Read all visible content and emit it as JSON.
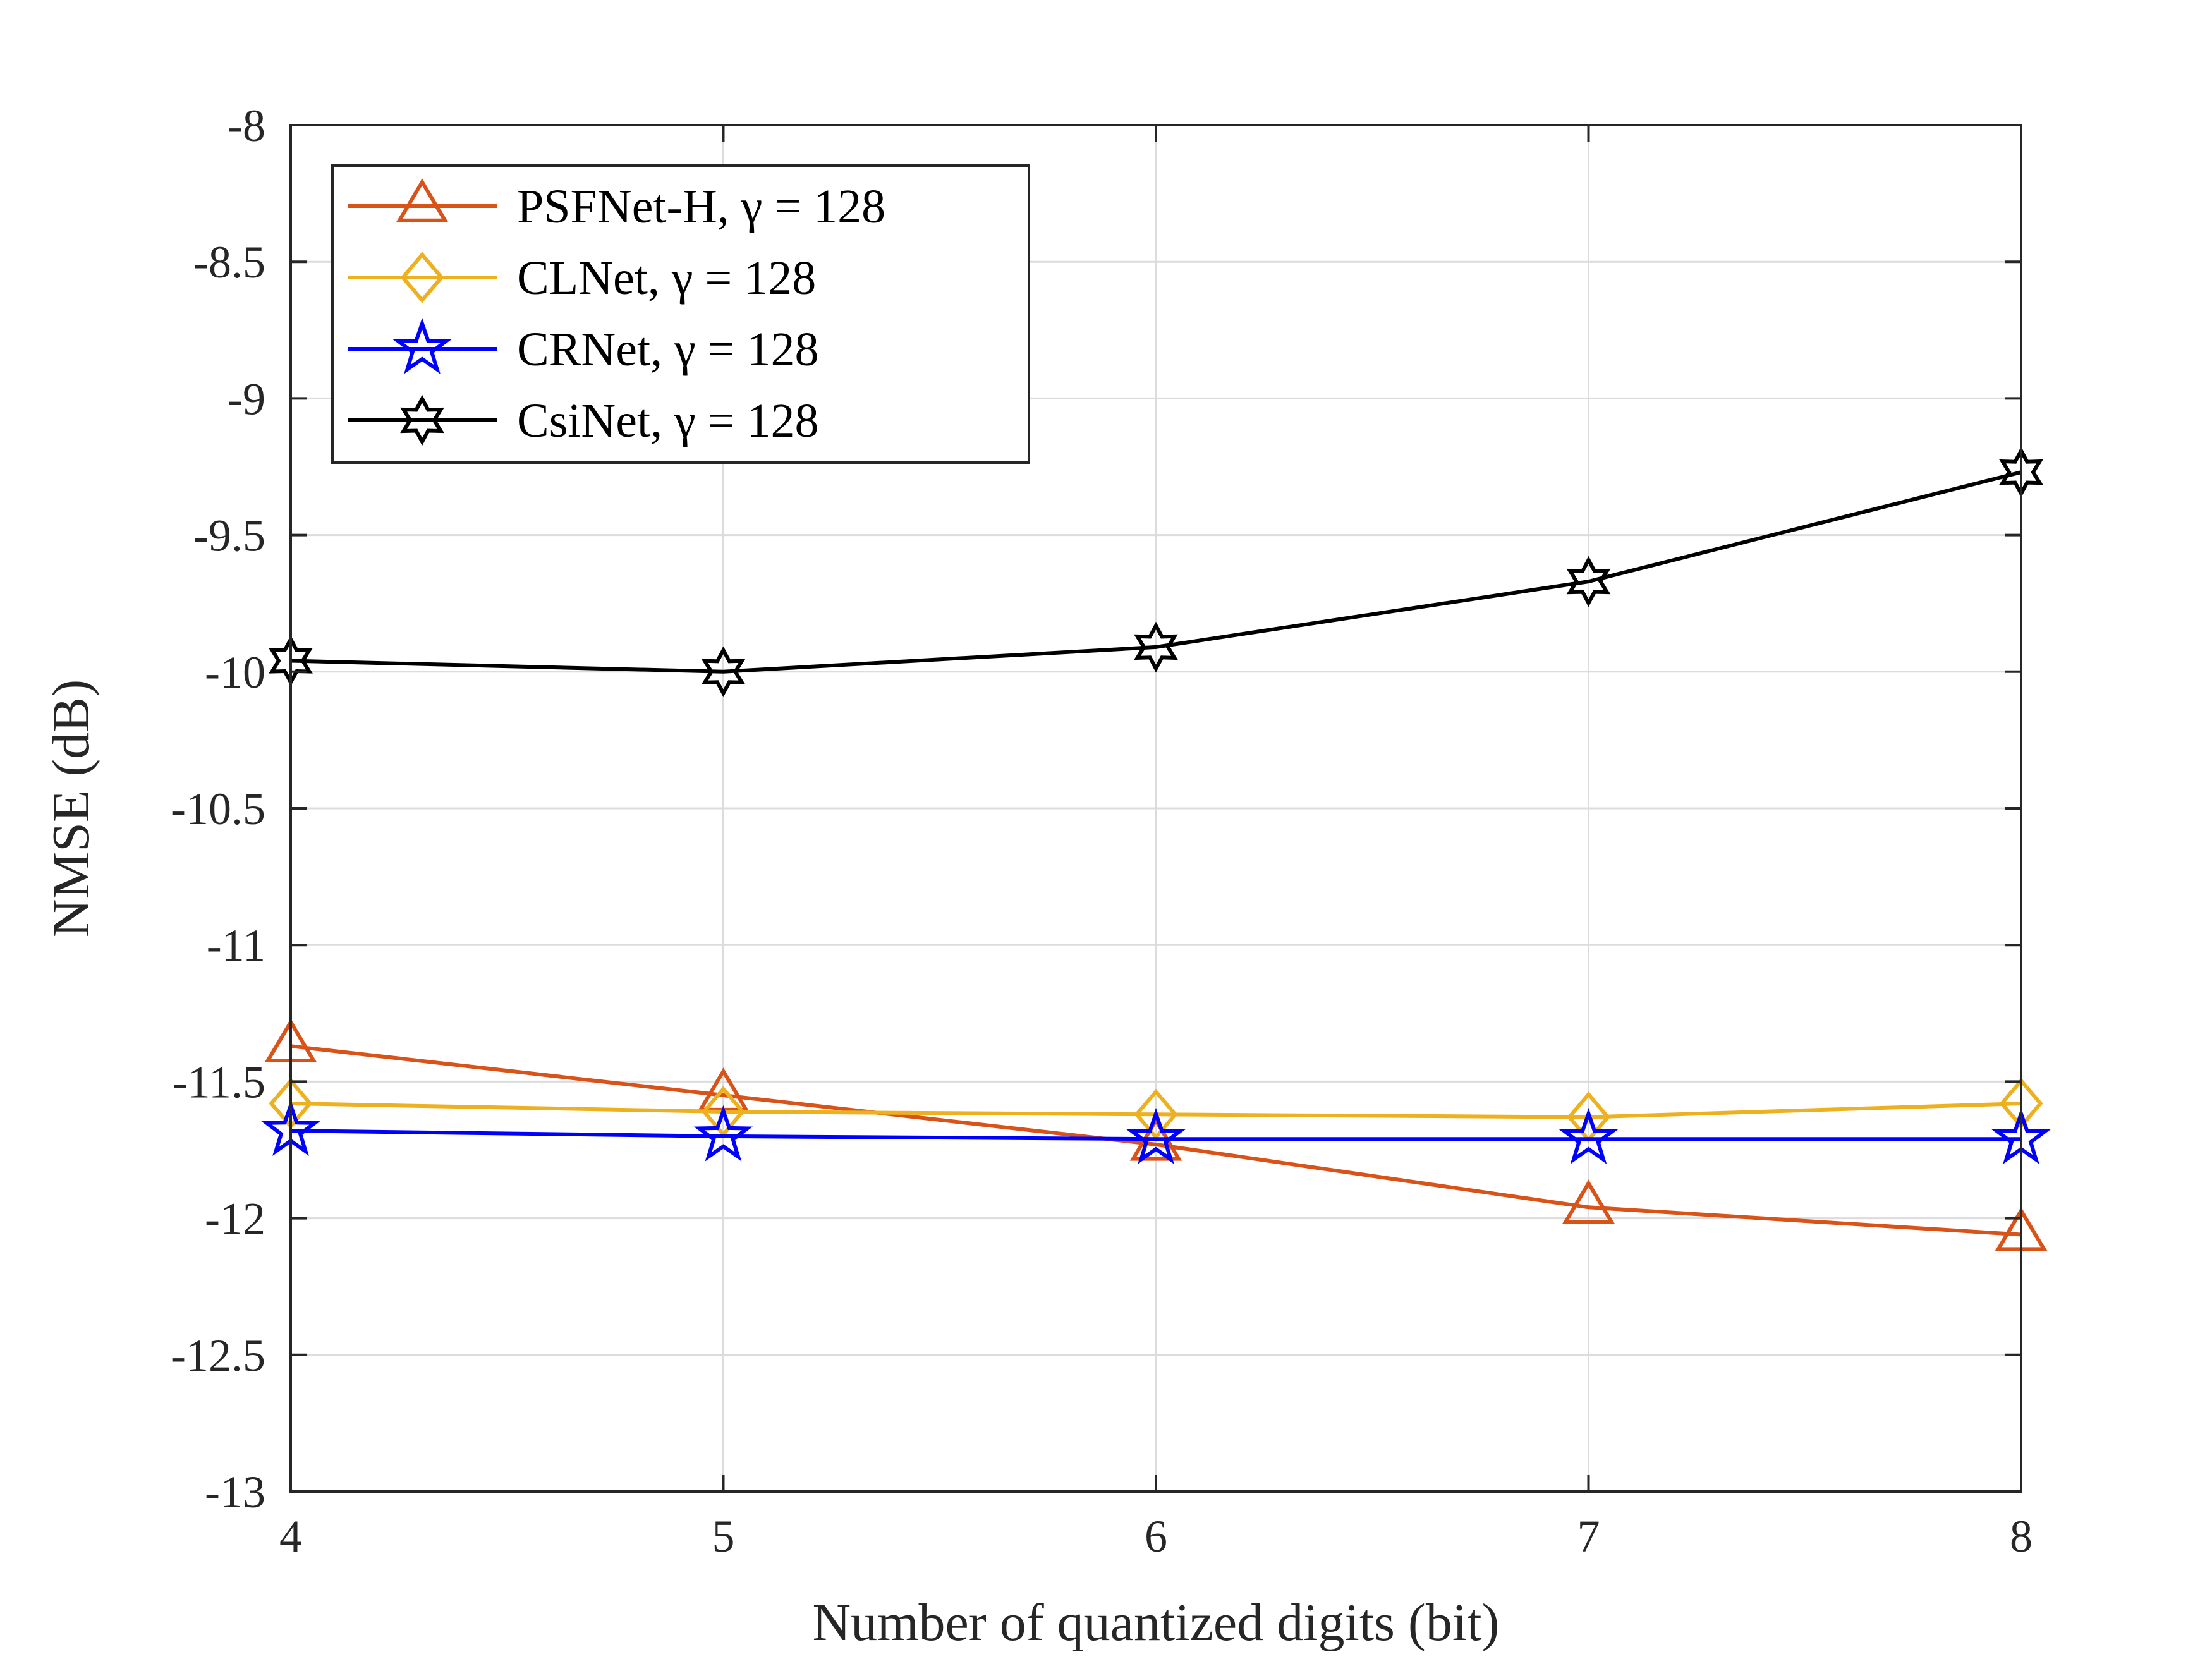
{
  "chart_data": {
    "type": "line",
    "xlabel": "Number of quantized digits (bit)",
    "ylabel": "NMSE (dB)",
    "x": [
      4,
      5,
      6,
      7,
      8
    ],
    "xlim": [
      4,
      8
    ],
    "ylim": [
      -13,
      -8
    ],
    "xticks": [
      "4",
      "5",
      "6",
      "7",
      "8"
    ],
    "yticks": [
      "-8",
      "-8.5",
      "-9",
      "-9.5",
      "-10",
      "-10.5",
      "-11",
      "-11.5",
      "-12",
      "-12.5",
      "-13"
    ],
    "grid": true,
    "legend_position": "top-left",
    "series": [
      {
        "name": "PSFNet-H, γ = 128",
        "color": "#D95319",
        "marker": "triangle",
        "values": [
          -11.37,
          -11.55,
          -11.73,
          -11.96,
          -12.06
        ]
      },
      {
        "name": "CLNet, γ = 128",
        "color": "#EDB120",
        "marker": "diamond",
        "values": [
          -11.58,
          -11.61,
          -11.62,
          -11.63,
          -11.58
        ]
      },
      {
        "name": "CRNet, γ = 128",
        "color": "#0000FF",
        "marker": "star",
        "values": [
          -11.68,
          -11.7,
          -11.71,
          -11.71,
          -11.71
        ]
      },
      {
        "name": "CsiNet, γ = 128",
        "color": "#000000",
        "marker": "hexagram",
        "values": [
          -9.96,
          -10.0,
          -9.91,
          -9.67,
          -9.27
        ]
      }
    ]
  }
}
